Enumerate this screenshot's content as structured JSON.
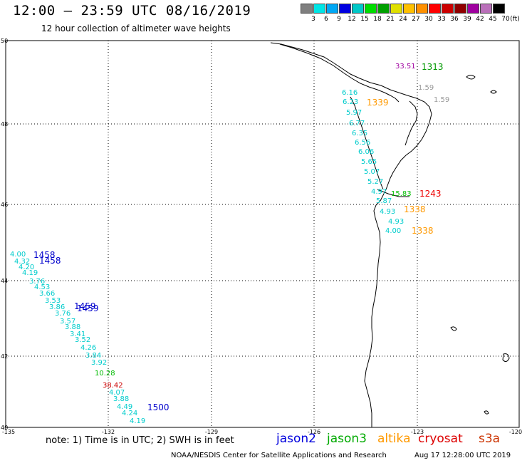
{
  "header": {
    "title": "12:00 – 23:59 UTC 08/16/2019",
    "subtitle": "12 hour collection of altimeter wave heights"
  },
  "colorbar": {
    "colors": [
      "#7f7f7f",
      "#00e5e5",
      "#00a8f5",
      "#0000e0",
      "#00c8c8",
      "#00dd00",
      "#00a000",
      "#e0e000",
      "#ffc000",
      "#ff9000",
      "#ff0000",
      "#cc0000",
      "#900000",
      "#a000a0",
      "#ba70ba",
      "#000000"
    ],
    "labels": [
      "3",
      "6",
      "9",
      "12",
      "15",
      "18",
      "21",
      "24",
      "27",
      "30",
      "33",
      "36",
      "39",
      "42",
      "45",
      "70"
    ],
    "unit": "(ft)"
  },
  "map": {
    "lon_ticks": [
      "-135",
      "-132",
      "-129",
      "-126",
      "-123",
      "-120"
    ],
    "lat_ticks": [
      "50",
      "48",
      "46",
      "44",
      "42",
      "40"
    ]
  },
  "observations": [
    {
      "label": "6.16",
      "color": "#00cccc"
    },
    {
      "label": "6.23",
      "color": "#00cccc"
    },
    {
      "label": "5.97",
      "color": "#00cccc"
    },
    {
      "label": "6.77",
      "color": "#00cccc"
    },
    {
      "label": "6.35",
      "color": "#00cccc"
    },
    {
      "label": "6.56",
      "color": "#00cccc"
    },
    {
      "label": "6.06",
      "color": "#00cccc"
    },
    {
      "label": "5.65",
      "color": "#00cccc"
    },
    {
      "label": "5.07",
      "color": "#00cccc"
    },
    {
      "label": "5.27",
      "color": "#00cccc"
    },
    {
      "label": "4.97",
      "color": "#00cccc"
    },
    {
      "label": "5.87",
      "color": "#00cccc"
    },
    {
      "label": "4.93",
      "color": "#00cccc"
    },
    {
      "label": "4.93",
      "color": "#00cccc"
    },
    {
      "label": "4.00",
      "color": "#00cccc"
    },
    {
      "label": "4.00",
      "color": "#00cccc"
    },
    {
      "label": "4.32",
      "color": "#00cccc"
    },
    {
      "label": "4.20",
      "color": "#00cccc"
    },
    {
      "label": "4.19",
      "color": "#00cccc"
    },
    {
      "label": "3.76",
      "color": "#00cccc"
    },
    {
      "label": "4.53",
      "color": "#00cccc"
    },
    {
      "label": "3.66",
      "color": "#00cccc"
    },
    {
      "label": "3.53",
      "color": "#00cccc"
    },
    {
      "label": "3.86",
      "color": "#00cccc"
    },
    {
      "label": "3.76",
      "color": "#00cccc"
    },
    {
      "label": "3.57",
      "color": "#00cccc"
    },
    {
      "label": "3.88",
      "color": "#00cccc"
    },
    {
      "label": "3.41",
      "color": "#00cccc"
    },
    {
      "label": "3.52",
      "color": "#00cccc"
    },
    {
      "label": "4.26",
      "color": "#00cccc"
    },
    {
      "label": "3.84",
      "color": "#00cccc"
    },
    {
      "label": "3.92",
      "color": "#00cccc"
    },
    {
      "label": "10.28",
      "color": "#00bb00"
    },
    {
      "label": "38.42",
      "color": "#cc0000"
    },
    {
      "label": "4.07",
      "color": "#00cccc"
    },
    {
      "label": "3.88",
      "color": "#00cccc"
    },
    {
      "label": "4.49",
      "color": "#00cccc"
    },
    {
      "label": "4.24",
      "color": "#00cccc"
    },
    {
      "label": "4.19",
      "color": "#00cccc"
    },
    {
      "label": "15.83",
      "color": "#00bb00"
    },
    {
      "label": "33.51",
      "color": "#a000a0"
    },
    {
      "label": "1.59",
      "color": "#999999"
    },
    {
      "label": "1.59",
      "color": "#999999"
    }
  ],
  "pass_times": [
    {
      "label": "1458",
      "color": "#0000cc"
    },
    {
      "label": "1458",
      "color": "#0000cc"
    },
    {
      "label": "1459",
      "color": "#0000cc"
    },
    {
      "label": "1459",
      "color": "#0000cc"
    },
    {
      "label": "1500",
      "color": "#0000cc"
    },
    {
      "label": "1339",
      "color": "#ff9900"
    },
    {
      "label": "1313",
      "color": "#009900"
    },
    {
      "label": "1243",
      "color": "#ee0000"
    },
    {
      "label": "1338",
      "color": "#ff9900"
    },
    {
      "label": "1338",
      "color": "#ff9900"
    }
  ],
  "footer": {
    "note": "note:  1) Time is in UTC;  2) SWH is in feet",
    "satellites": [
      {
        "name": "jason2",
        "color": "#0000dd"
      },
      {
        "name": "jason3",
        "color": "#00aa00"
      },
      {
        "name": "altika",
        "color": "#ff9900"
      },
      {
        "name": "cryosat",
        "color": "#dd0000"
      },
      {
        "name": "s3a",
        "color": "#cc3300"
      }
    ],
    "credit": "NOAA/NESDIS Center for Satellite Applications and Research",
    "timestamp": "Aug 17 12:28:00 UTC 2019"
  }
}
